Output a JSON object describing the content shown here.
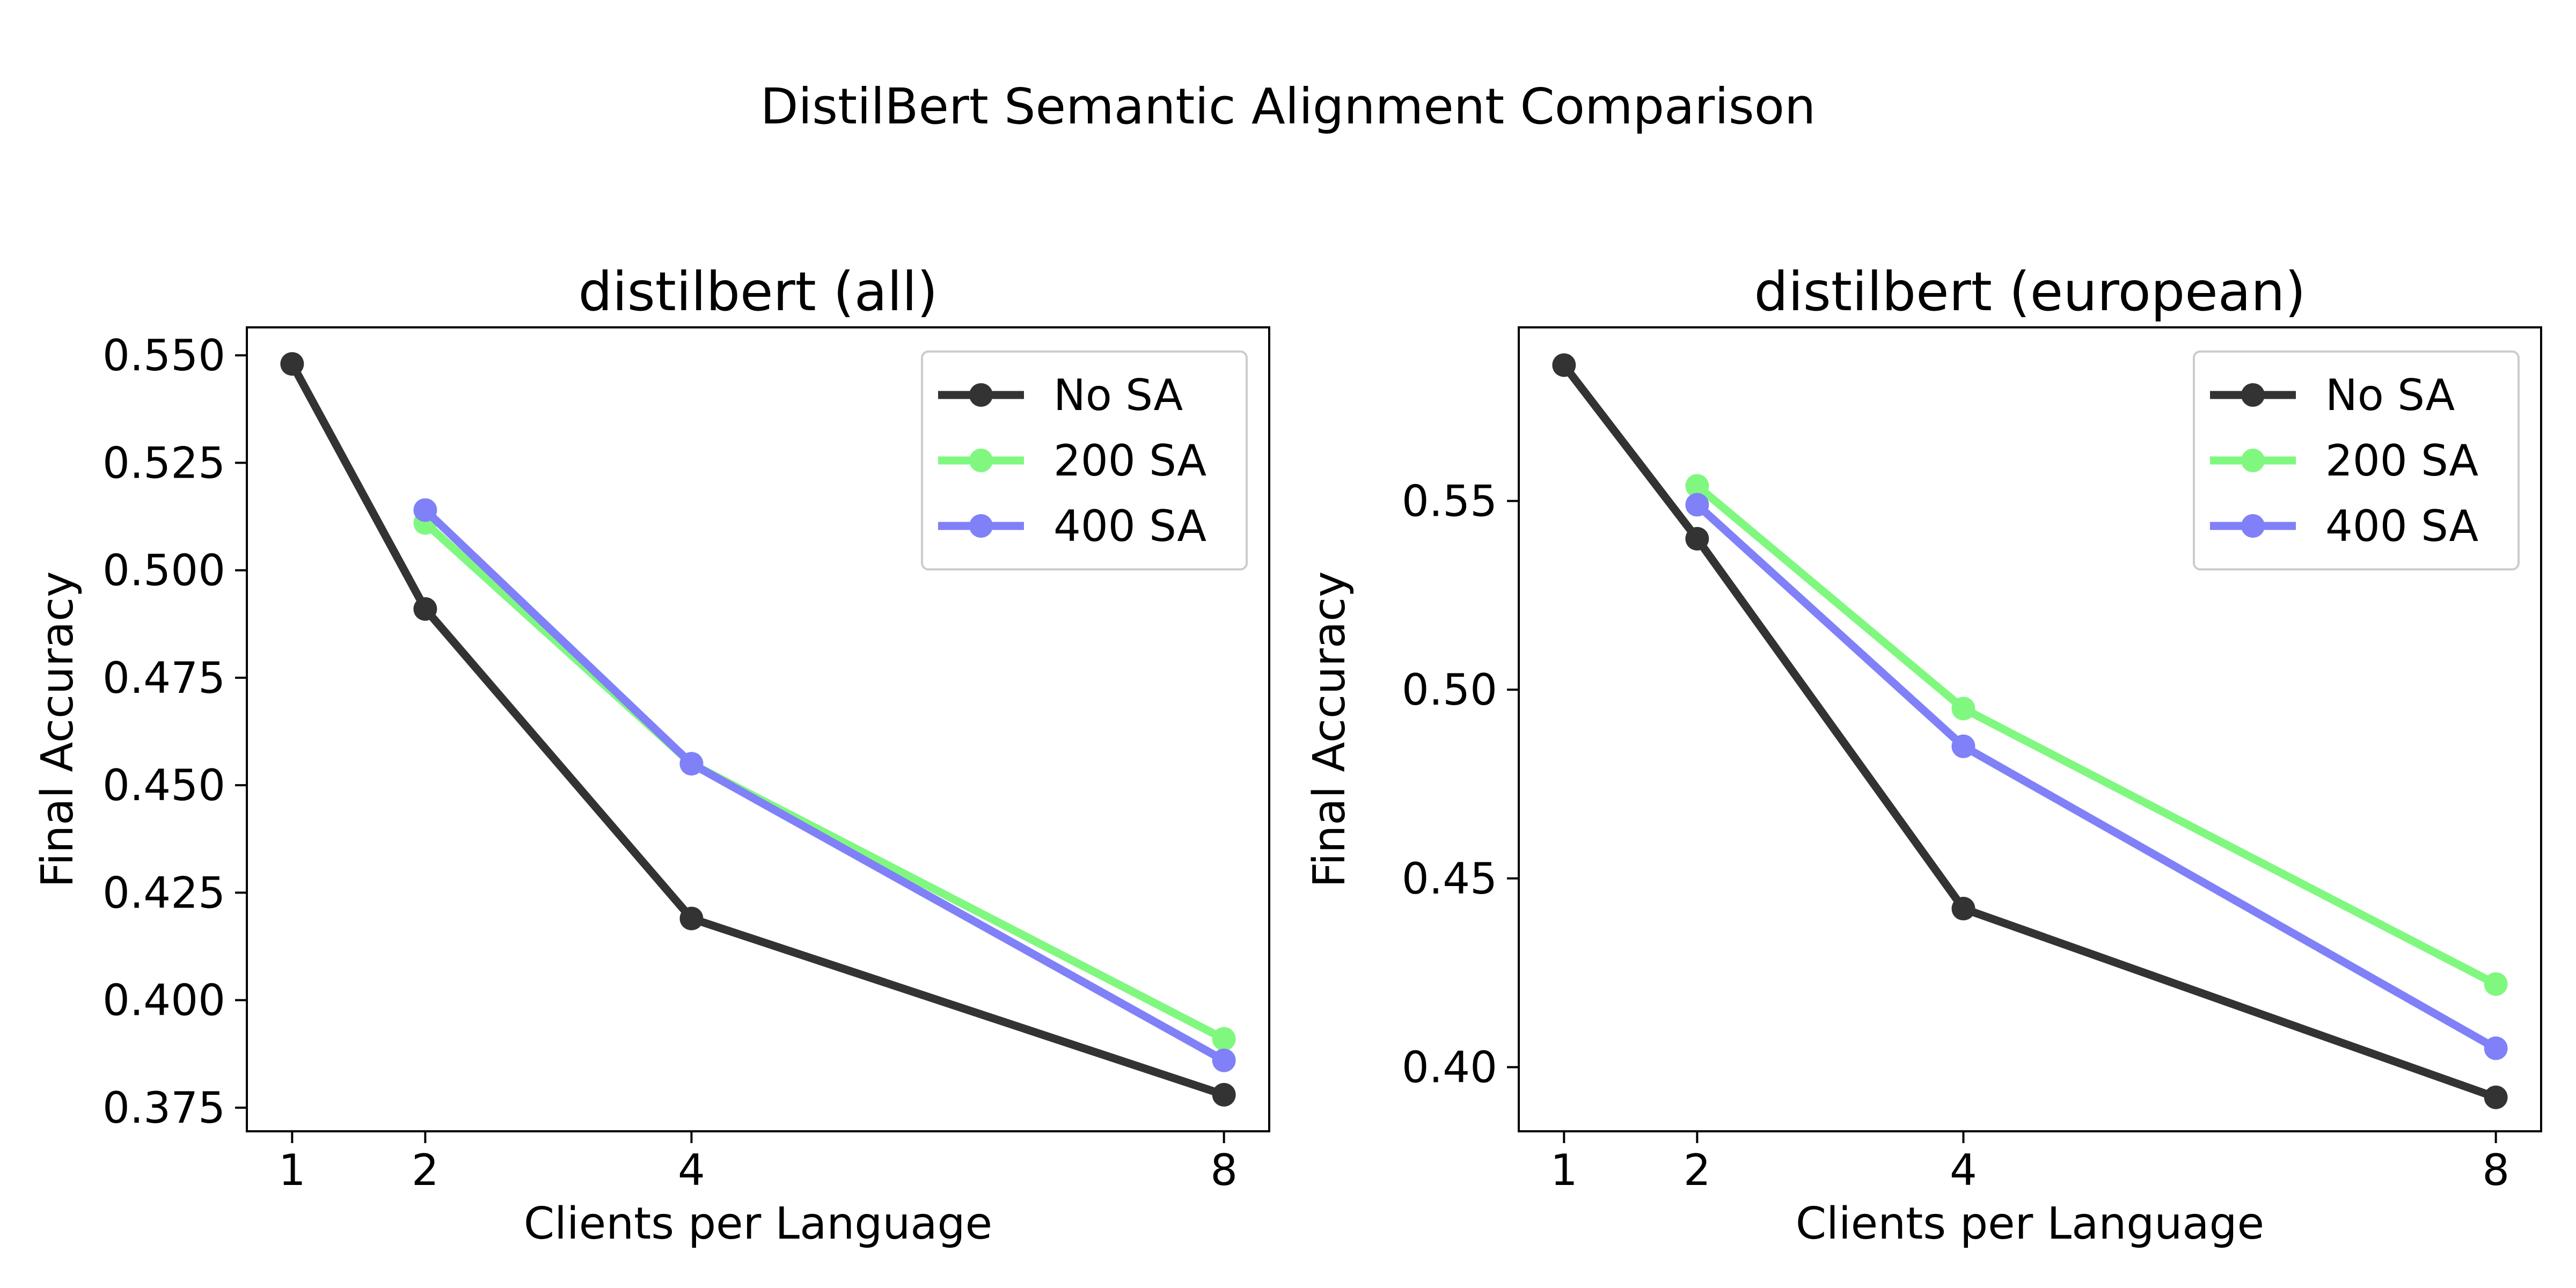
{
  "figure": {
    "title": "DistilBert Semantic Alignment Comparison"
  },
  "chart_data": [
    {
      "type": "line",
      "title": "distilbert (all)",
      "xlabel": "Clients per Language",
      "ylabel": "Final Accuracy",
      "xlim": [
        0.66,
        8.34
      ],
      "ylim": [
        0.3695,
        0.5565
      ],
      "x_ticks": [
        1,
        2,
        4,
        8
      ],
      "y_ticks": [
        0.375,
        0.4,
        0.425,
        0.45,
        0.475,
        0.5,
        0.525,
        0.55
      ],
      "y_tick_labels": [
        "0.375",
        "0.400",
        "0.425",
        "0.450",
        "0.475",
        "0.500",
        "0.525",
        "0.550"
      ],
      "grid": false,
      "legend": "top-right",
      "series": [
        {
          "name": "No SA",
          "color": "#333333",
          "x": [
            1,
            2,
            4,
            8
          ],
          "y": [
            0.548,
            0.491,
            0.419,
            0.378
          ]
        },
        {
          "name": "200 SA",
          "color": "#80f880",
          "x": [
            2,
            4,
            8
          ],
          "y": [
            0.511,
            0.455,
            0.391
          ]
        },
        {
          "name": "400 SA",
          "color": "#8080f8",
          "x": [
            2,
            4,
            8
          ],
          "y": [
            0.514,
            0.455,
            0.386
          ]
        }
      ]
    },
    {
      "type": "line",
      "title": "distilbert (european)",
      "xlabel": "Clients per Language",
      "ylabel": "Final Accuracy",
      "xlim": [
        0.66,
        8.34
      ],
      "ylim": [
        0.383,
        0.596
      ],
      "x_ticks": [
        1,
        2,
        4,
        8
      ],
      "y_ticks": [
        0.4,
        0.45,
        0.5,
        0.55
      ],
      "y_tick_labels": [
        "0.40",
        "0.45",
        "0.50",
        "0.55"
      ],
      "grid": false,
      "legend": "top-right",
      "series": [
        {
          "name": "No SA",
          "color": "#333333",
          "x": [
            1,
            2,
            4,
            8
          ],
          "y": [
            0.586,
            0.54,
            0.442,
            0.392
          ]
        },
        {
          "name": "200 SA",
          "color": "#80f880",
          "x": [
            2,
            4,
            8
          ],
          "y": [
            0.554,
            0.495,
            0.422
          ]
        },
        {
          "name": "400 SA",
          "color": "#8080f8",
          "x": [
            2,
            4,
            8
          ],
          "y": [
            0.549,
            0.485,
            0.405
          ]
        }
      ]
    }
  ]
}
